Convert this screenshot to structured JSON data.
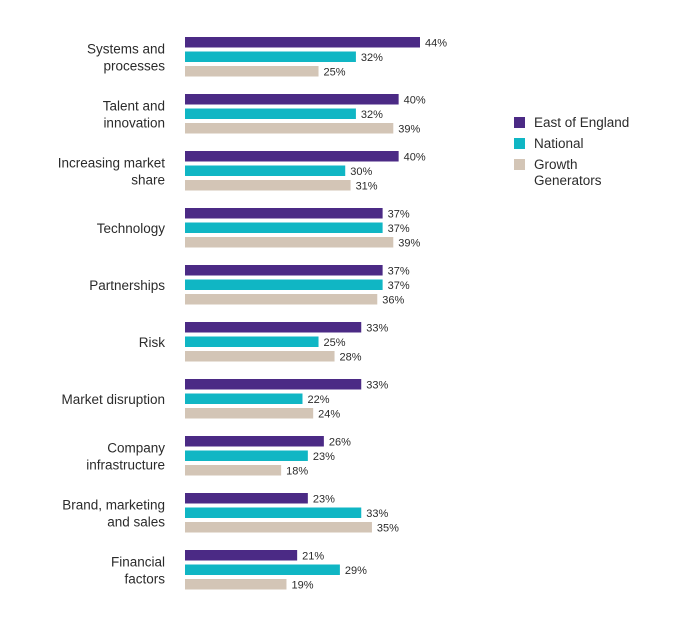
{
  "chart_data": {
    "type": "bar",
    "orientation": "horizontal",
    "categories": [
      [
        "Systems and",
        "processes"
      ],
      [
        "Talent and",
        "innovation"
      ],
      [
        "Increasing market",
        "share"
      ],
      [
        "Technology"
      ],
      [
        "Partnerships"
      ],
      [
        "Risk"
      ],
      [
        "Market disruption"
      ],
      [
        "Company",
        "infrastructure"
      ],
      [
        "Brand, marketing",
        "and sales"
      ],
      [
        "Financial",
        "factors"
      ]
    ],
    "series": [
      {
        "name": "East of England",
        "color": "#4b2a85",
        "values": [
          44,
          40,
          40,
          37,
          37,
          33,
          33,
          26,
          23,
          21
        ]
      },
      {
        "name": "National",
        "color": "#10b6c4",
        "values": [
          32,
          32,
          30,
          37,
          37,
          25,
          22,
          23,
          33,
          29
        ]
      },
      {
        "name": "Growth Generators",
        "name_lines": [
          "Growth",
          "Generators"
        ],
        "color": "#d3c5b6",
        "values": [
          25,
          39,
          31,
          39,
          36,
          28,
          24,
          18,
          35,
          19
        ]
      }
    ],
    "value_suffix": "%",
    "xlim": [
      0,
      44
    ],
    "grid": false,
    "legend_position": "right"
  }
}
